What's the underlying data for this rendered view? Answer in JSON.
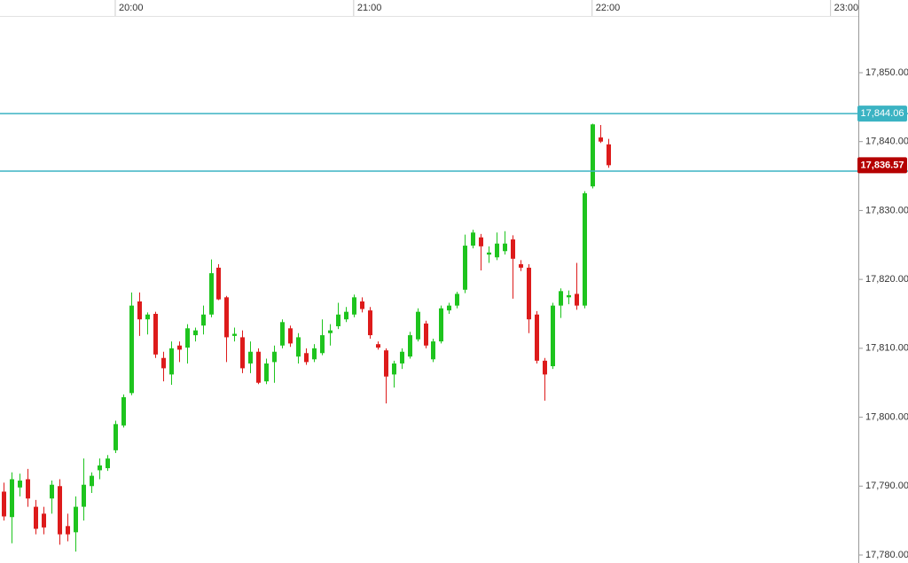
{
  "chart_data": {
    "type": "candlestick",
    "up_color": "#1ec41e",
    "down_color": "#dd1b1b",
    "level_color": "#3bb3c3",
    "last_color": "#b50000",
    "xlim": [
      "19:31",
      "23:07"
    ],
    "xticks": [
      "20:00",
      "21:00",
      "22:00",
      "23:00"
    ],
    "ylim": [
      17778.84,
      17860.55
    ],
    "yticks": [
      {
        "value": 17780,
        "label": "17,780.00"
      },
      {
        "value": 17790,
        "label": "17,790.00"
      },
      {
        "value": 17800,
        "label": "17,800.00"
      },
      {
        "value": 17810,
        "label": "17,810.00"
      },
      {
        "value": 17820,
        "label": "17,820.00"
      },
      {
        "value": 17830,
        "label": "17,830.00"
      },
      {
        "value": 17840,
        "label": "17,840.00"
      },
      {
        "value": 17850,
        "label": "17,850.00"
      }
    ],
    "levels": [
      {
        "value": 17844.06,
        "label": "17,844.06"
      },
      {
        "value": 17835.72
      }
    ],
    "last_price": {
      "value": 17836.57,
      "label": "17,836.57"
    },
    "x": [
      "19:32",
      "19:34",
      "19:36",
      "19:38",
      "19:40",
      "19:42",
      "19:44",
      "19:46",
      "19:48",
      "19:50",
      "19:52",
      "19:54",
      "19:56",
      "19:58",
      "20:00",
      "20:02",
      "20:04",
      "20:06",
      "20:08",
      "20:10",
      "20:12",
      "20:14",
      "20:16",
      "20:18",
      "20:20",
      "20:22",
      "20:24",
      "20:26",
      "20:28",
      "20:30",
      "20:32",
      "20:34",
      "20:36",
      "20:38",
      "20:40",
      "20:42",
      "20:44",
      "20:46",
      "20:48",
      "20:50",
      "20:52",
      "20:54",
      "20:56",
      "20:58",
      "21:00",
      "21:02",
      "21:04",
      "21:06",
      "21:08",
      "21:10",
      "21:12",
      "21:14",
      "21:16",
      "21:18",
      "21:20",
      "21:22",
      "21:24",
      "21:26",
      "21:28",
      "21:30",
      "21:32",
      "21:34",
      "21:36",
      "21:38",
      "21:40",
      "21:42",
      "21:44",
      "21:46",
      "21:48",
      "21:50",
      "21:52",
      "21:54",
      "21:56",
      "21:58",
      "22:00",
      "22:02",
      "22:04"
    ],
    "open": [
      17789.2,
      17785.5,
      17789.8,
      17791.0,
      17787.0,
      17786.0,
      17788.2,
      17790.0,
      17784.2,
      17783.3,
      17787.0,
      17790.0,
      17792.3,
      17792.6,
      17795.2,
      17798.8,
      17803.5,
      17816.8,
      17814.2,
      17815.0,
      17808.6,
      17806.2,
      17810.4,
      17810.1,
      17811.9,
      17813.3,
      17814.9,
      17821.7,
      17817.4,
      17811.8,
      17811.6,
      17807.8,
      17809.5,
      17805.2,
      17808.0,
      17810.4,
      17812.9,
      17808.8,
      17809.3,
      17808.4,
      17809.3,
      17812.2,
      17813.2,
      17814.2,
      17814.9,
      17816.8,
      17815.5,
      17810.6,
      17809.7,
      17806.2,
      17807.8,
      17808.8,
      17811.3,
      17813.6,
      17808.4,
      17811.0,
      17815.5,
      17816.2,
      17818.5,
      17824.9,
      17826.1,
      17823.6,
      17823.2,
      17824.1,
      17825.8,
      17822.2,
      17821.7,
      17814.9,
      17808.2,
      17807.4,
      17816.2,
      17817.4,
      17817.9,
      17816.2,
      17833.5,
      17840.6,
      17839.6
    ],
    "high": [
      17790.5,
      17792.0,
      17791.8,
      17792.5,
      17788.0,
      17787.0,
      17790.8,
      17791.0,
      17786.0,
      17788.5,
      17794.0,
      17792.0,
      17794.0,
      17794.5,
      17799.5,
      17803.3,
      17818.1,
      17818.1,
      17815.2,
      17815.3,
      17809.5,
      17811.0,
      17811.0,
      17813.5,
      17813.0,
      17816.2,
      17822.9,
      17822.2,
      17817.6,
      17813.0,
      17812.6,
      17811.0,
      17810.0,
      17808.5,
      17810.4,
      17814.2,
      17813.3,
      17812.2,
      17810.0,
      17810.6,
      17814.2,
      17813.5,
      17816.6,
      17816.0,
      17817.8,
      17817.4,
      17816.0,
      17811.0,
      17810.0,
      17808.2,
      17810.0,
      17812.4,
      17815.8,
      17814.0,
      17811.4,
      17816.2,
      17816.6,
      17818.2,
      17826.5,
      17827.2,
      17826.6,
      17824.8,
      17826.8,
      17827.0,
      17826.4,
      17822.8,
      17822.2,
      17815.4,
      17808.6,
      17816.6,
      17818.7,
      17818.4,
      17822.4,
      17832.8,
      17842.6,
      17842.4,
      17840.4
    ],
    "low": [
      17785.0,
      17781.7,
      17788.5,
      17787.0,
      17783.0,
      17783.0,
      17786.0,
      17781.5,
      17782.0,
      17780.5,
      17785.0,
      17789.0,
      17791.0,
      17792.2,
      17794.8,
      17798.5,
      17803.2,
      17811.8,
      17812.0,
      17808.6,
      17805.2,
      17804.7,
      17808.0,
      17807.8,
      17811.0,
      17812.0,
      17814.5,
      17817.0,
      17808.0,
      17811.0,
      17806.4,
      17806.4,
      17804.8,
      17804.8,
      17805.0,
      17810.0,
      17810.2,
      17807.8,
      17807.6,
      17808.0,
      17809.0,
      17810.4,
      17812.8,
      17813.8,
      17814.5,
      17815.2,
      17811.4,
      17809.8,
      17802.0,
      17804.3,
      17807.0,
      17808.5,
      17811.0,
      17810.0,
      17808.0,
      17810.7,
      17815.0,
      17815.8,
      17818.0,
      17824.5,
      17821.3,
      17822.4,
      17822.8,
      17823.6,
      17817.2,
      17821.2,
      17812.2,
      17807.8,
      17802.4,
      17807.0,
      17814.4,
      17816.4,
      17815.6,
      17815.8,
      17833.2,
      17839.8,
      17836.2
    ],
    "close": [
      17785.6,
      17791.0,
      17790.8,
      17788.2,
      17783.8,
      17784.0,
      17790.2,
      17783.0,
      17783.0,
      17787.0,
      17790.2,
      17791.5,
      17793.0,
      17794.0,
      17799.0,
      17802.9,
      17816.2,
      17814.2,
      17814.9,
      17809.1,
      17807.1,
      17810.0,
      17809.8,
      17812.9,
      17812.6,
      17814.9,
      17820.9,
      17817.1,
      17811.6,
      17812.1,
      17807.1,
      17809.5,
      17805.0,
      17807.8,
      17809.5,
      17813.8,
      17810.7,
      17811.6,
      17808.0,
      17810.0,
      17811.9,
      17812.6,
      17814.9,
      17815.3,
      17817.4,
      17815.7,
      17811.9,
      17810.1,
      17805.9,
      17807.8,
      17809.5,
      17811.9,
      17815.3,
      17810.4,
      17811.0,
      17815.8,
      17816.2,
      17817.9,
      17824.9,
      17826.8,
      17824.8,
      17823.9,
      17825.2,
      17825.2,
      17823.0,
      17821.7,
      17814.2,
      17808.2,
      17806.2,
      17816.2,
      17818.3,
      17817.7,
      17816.2,
      17832.5,
      17842.5,
      17840.0,
      17836.57
    ]
  }
}
